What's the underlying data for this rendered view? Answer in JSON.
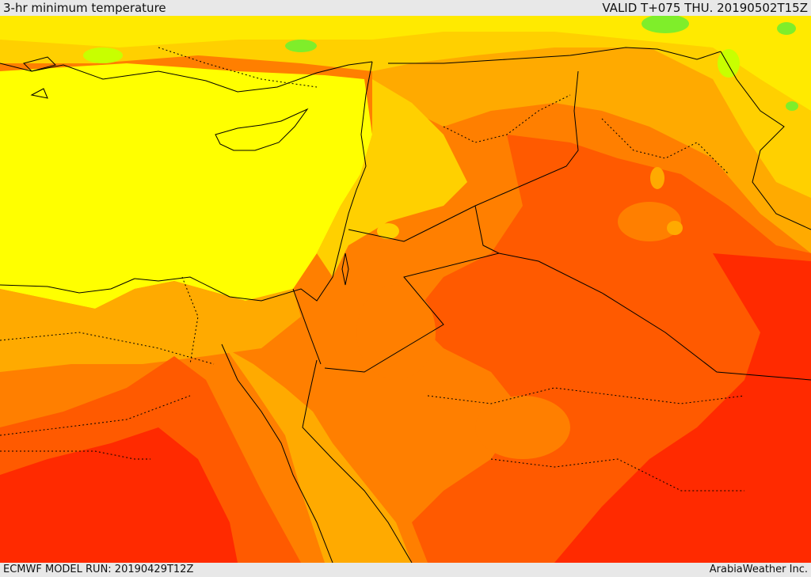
{
  "header": {
    "title": "3-hr minimum temperature",
    "valid": "VALID T+075 THU. 20190502T15Z"
  },
  "footer": {
    "model_run": "ECMWF MODEL RUN: 20190429T12Z",
    "credit": "ArabiaWeather Inc."
  },
  "map": {
    "palette": {
      "sea_yellow": "#ffff00",
      "light_orange": "#ffd000",
      "orange": "#ffaa00",
      "dark_orange": "#ff7f00",
      "red_orange": "#ff5a00",
      "red": "#ff2a00",
      "green": "#7fee2a",
      "light_green": "#c8ff00"
    }
  }
}
